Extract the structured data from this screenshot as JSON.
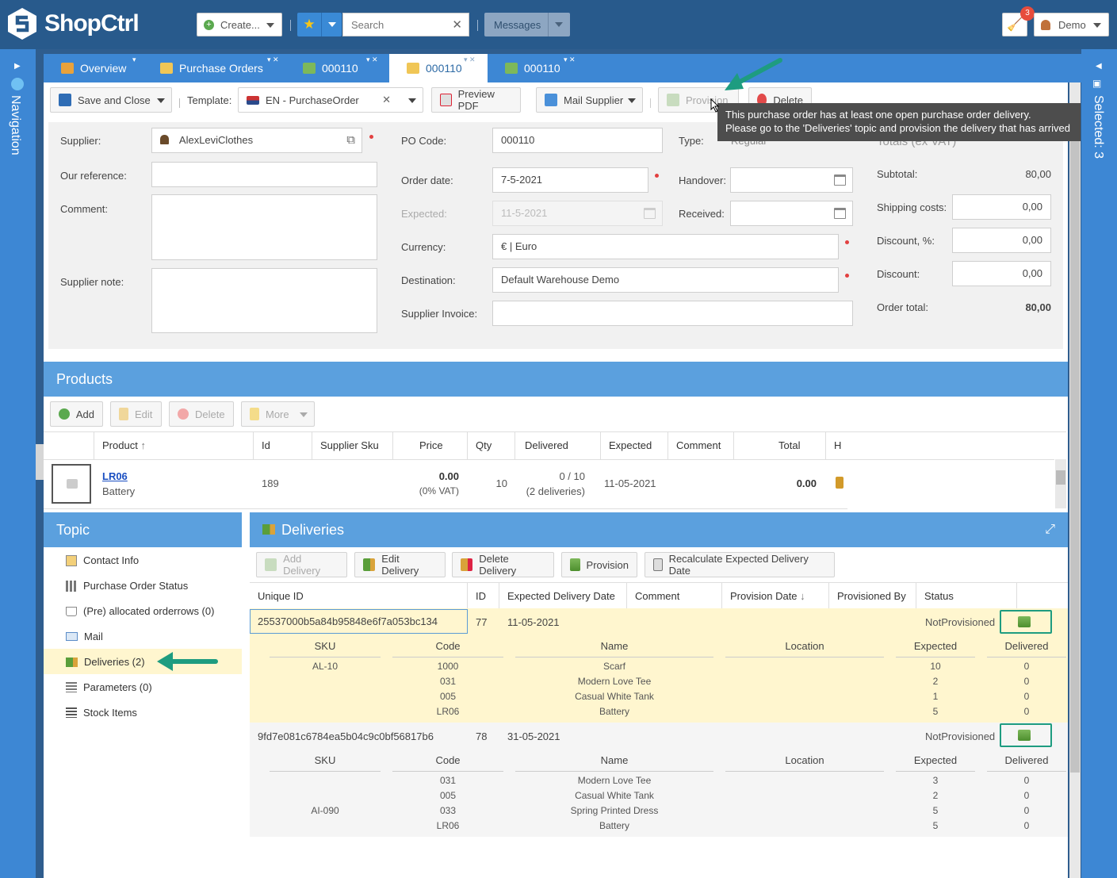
{
  "app": {
    "logo_text": "ShopCtrl"
  },
  "topbar": {
    "create_label": "Create...",
    "search_placeholder": "Search",
    "messages_label": "Messages",
    "notification_count": "3",
    "user_label": "Demo"
  },
  "side": {
    "navigation_label": "Navigation",
    "selected_label": "Selected: 3"
  },
  "tabs": [
    {
      "label": "Overview"
    },
    {
      "label": "Purchase Orders"
    },
    {
      "label": "000110"
    },
    {
      "label": "000110"
    },
    {
      "label": "000110"
    }
  ],
  "toolbar": {
    "save_close": "Save and Close",
    "template_label": "Template:",
    "template_value": "EN - PurchaseOrder",
    "preview_pdf": "Preview PDF",
    "mail_supplier": "Mail Supplier",
    "provision": "Provision",
    "delete": "Delete"
  },
  "tooltip": {
    "line1": "This purchase order has at least one open purchase order delivery.",
    "line2": "Please go to the 'Deliveries' topic and provision the delivery that has arrived"
  },
  "form": {
    "supplier_label": "Supplier:",
    "supplier_value": "AlexLeviClothes",
    "our_reference_label": "Our reference:",
    "comment_label": "Comment:",
    "supplier_note_label": "Supplier note:",
    "po_code_label": "PO Code:",
    "po_code_value": "000110",
    "order_date_label": "Order date:",
    "order_date_value": "7-5-2021",
    "expected_label": "Expected:",
    "expected_value": "11-5-2021",
    "currency_label": "Currency:",
    "currency_value": "€ | Euro",
    "destination_label": "Destination:",
    "destination_value": "Default Warehouse Demo",
    "supplier_invoice_label": "Supplier Invoice:",
    "type_label": "Type:",
    "type_value": "Regular",
    "handover_label": "Handover:",
    "received_label": "Received:",
    "totals_heading": "Totals (ex VAT)",
    "subtotal_label": "Subtotal:",
    "subtotal_value": "80,00",
    "shipping_label": "Shipping costs:",
    "shipping_value": "0,00",
    "discount_pct_label": "Discount, %:",
    "discount_pct_value": "0,00",
    "discount_label": "Discount:",
    "discount_value": "0,00",
    "order_total_label": "Order total:",
    "order_total_value": "80,00"
  },
  "products": {
    "title": "Products",
    "add": "Add",
    "edit": "Edit",
    "delete": "Delete",
    "more": "More",
    "columns": [
      "Product",
      "Id",
      "Supplier Sku",
      "Price",
      "Qty",
      "Delivered",
      "Expected",
      "Comment",
      "Total",
      "H"
    ],
    "row": {
      "code": "LR06",
      "name": "Battery",
      "id": "189",
      "price": "0.00",
      "vat": "(0% VAT)",
      "qty": "10",
      "delivered": "0 / 10",
      "deliveries": "(2 deliveries)",
      "expected": "11-05-2021",
      "total": "0.00"
    }
  },
  "topic": {
    "title": "Topic",
    "items": [
      {
        "label": "Contact Info"
      },
      {
        "label": "Purchase Order Status"
      },
      {
        "label": "(Pre) allocated orderrows (0)"
      },
      {
        "label": "Mail"
      },
      {
        "label": "Deliveries (2)"
      },
      {
        "label": "Parameters (0)"
      },
      {
        "label": "Stock Items"
      }
    ]
  },
  "deliveries": {
    "title": "Deliveries",
    "add_delivery": "Add Delivery",
    "edit_delivery": "Edit Delivery",
    "delete_delivery": "Delete Delivery",
    "provision": "Provision",
    "recalc": "Recalculate Expected Delivery Date",
    "columns": [
      "Unique ID",
      "ID",
      "Expected Delivery Date",
      "Comment",
      "Provision Date",
      "Provisioned By",
      "Status"
    ],
    "sub_columns": [
      "SKU",
      "Code",
      "Name",
      "Location",
      "Expected",
      "Delivered"
    ],
    "rows": [
      {
        "unique_id": "25537000b5a84b95848e6f7a053bc134",
        "id": "77",
        "date": "11-05-2021",
        "status": "NotProvisioned",
        "sku": "AL-10",
        "lines": [
          {
            "code": "1000",
            "name": "Scarf",
            "expected": "10",
            "delivered": "0"
          },
          {
            "code": "031",
            "name": "Modern Love Tee",
            "expected": "2",
            "delivered": "0"
          },
          {
            "code": "005",
            "name": "Casual White Tank",
            "expected": "1",
            "delivered": "0"
          },
          {
            "code": "LR06",
            "name": "Battery",
            "expected": "5",
            "delivered": "0"
          }
        ]
      },
      {
        "unique_id": "9fd7e081c6784ea5b04c9c0bf56817b6",
        "id": "78",
        "date": "31-05-2021",
        "status": "NotProvisioned",
        "sku": "AI-090",
        "lines": [
          {
            "code": "031",
            "name": "Modern Love Tee",
            "expected": "3",
            "delivered": "0"
          },
          {
            "code": "005",
            "name": "Casual White Tank",
            "expected": "2",
            "delivered": "0"
          },
          {
            "code": "033",
            "name": "Spring Printed Dress",
            "expected": "5",
            "delivered": "0"
          },
          {
            "code": "LR06",
            "name": "Battery",
            "expected": "5",
            "delivered": "0"
          }
        ]
      }
    ]
  },
  "colors": {
    "accent": "#3d87d4",
    "header": "#285a8c",
    "highlight": "#fff6cf",
    "annotation": "#1e9c80"
  }
}
